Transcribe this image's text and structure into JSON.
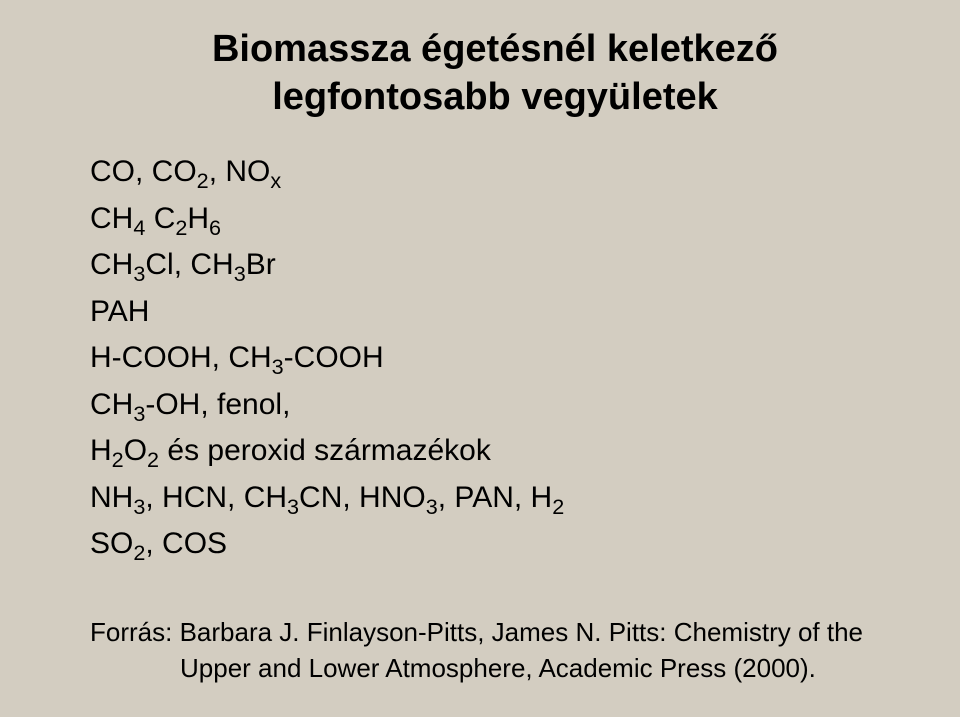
{
  "background_color": "#d3cdc1",
  "text_color": "#000000",
  "title_fontsize": 38,
  "body_fontsize": 30,
  "source_fontsize": 26,
  "title": {
    "l1": "Biomassza égetésnél keletkező",
    "l2": "legfontosabb vegyületek"
  },
  "lines": {
    "a": {
      "p": [
        "CO, CO",
        "2",
        ", NO",
        "x"
      ]
    },
    "b": {
      "p": [
        "CH",
        "4",
        " C",
        "2",
        "H",
        "6"
      ]
    },
    "c": {
      "p": [
        "CH",
        "3",
        "Cl, CH",
        "3",
        "Br"
      ]
    },
    "d": {
      "p": [
        "PAH"
      ]
    },
    "e": {
      "p": [
        "H-COOH, CH",
        "3",
        "-COOH"
      ]
    },
    "f": {
      "p": [
        "CH",
        "3",
        "-OH, fenol,"
      ]
    },
    "g": {
      "p": [
        "H",
        "2",
        "O",
        "2",
        " és peroxid származékok"
      ]
    },
    "h": {
      "p": [
        "NH",
        "3",
        ", HCN, CH",
        "3",
        "CN, HNO",
        "3",
        ", PAN, H",
        "2"
      ]
    },
    "i": {
      "p": [
        "SO",
        "2",
        ", COS"
      ]
    }
  },
  "source": {
    "l1": "Forrás: Barbara J. Finlayson-Pitts, James N. Pitts: Chemistry of the",
    "l2": "Upper and Lower Atmosphere, Academic Press (2000)."
  }
}
